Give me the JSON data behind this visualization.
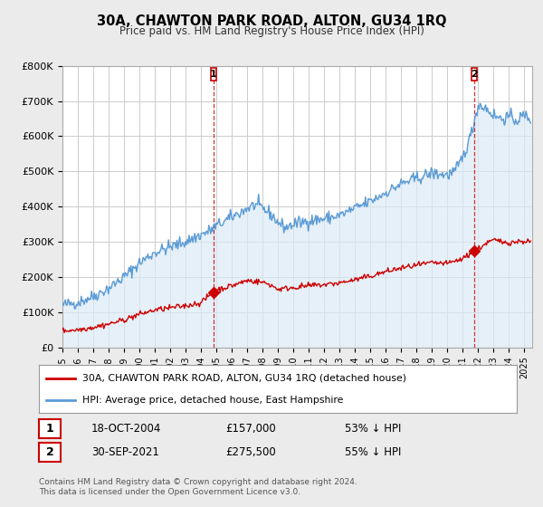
{
  "title": "30A, CHAWTON PARK ROAD, ALTON, GU34 1RQ",
  "subtitle": "Price paid vs. HM Land Registry's House Price Index (HPI)",
  "ylabel_ticks": [
    "£0",
    "£100K",
    "£200K",
    "£300K",
    "£400K",
    "£500K",
    "£600K",
    "£700K",
    "£800K"
  ],
  "ylim": [
    0,
    800000
  ],
  "xlim_start": 1995.0,
  "xlim_end": 2025.5,
  "xtick_years": [
    1995,
    1996,
    1997,
    1998,
    1999,
    2000,
    2001,
    2002,
    2003,
    2004,
    2005,
    2006,
    2007,
    2008,
    2009,
    2010,
    2011,
    2012,
    2013,
    2014,
    2015,
    2016,
    2017,
    2018,
    2019,
    2020,
    2021,
    2022,
    2023,
    2024,
    2025
  ],
  "hpi_color": "#5b9bd5",
  "hpi_fill_color": "#dceaf6",
  "price_color": "#cc0000",
  "marker1_x": 2004.8,
  "marker1_y": 157000,
  "marker1_label": "1",
  "marker1_date": "18-OCT-2004",
  "marker1_price": "£157,000",
  "marker1_note": "53% ↓ HPI",
  "marker2_x": 2021.75,
  "marker2_y": 275500,
  "marker2_label": "2",
  "marker2_date": "30-SEP-2021",
  "marker2_price": "£275,500",
  "marker2_note": "55% ↓ HPI",
  "vline1_x": 2004.8,
  "vline2_x": 2021.75,
  "legend_line1": "30A, CHAWTON PARK ROAD, ALTON, GU34 1RQ (detached house)",
  "legend_line2": "HPI: Average price, detached house, East Hampshire",
  "footnote": "Contains HM Land Registry data © Crown copyright and database right 2024.\nThis data is licensed under the Open Government Licence v3.0.",
  "bg_color": "#ebebeb",
  "plot_bg_color": "#ffffff",
  "grid_color": "#cccccc"
}
